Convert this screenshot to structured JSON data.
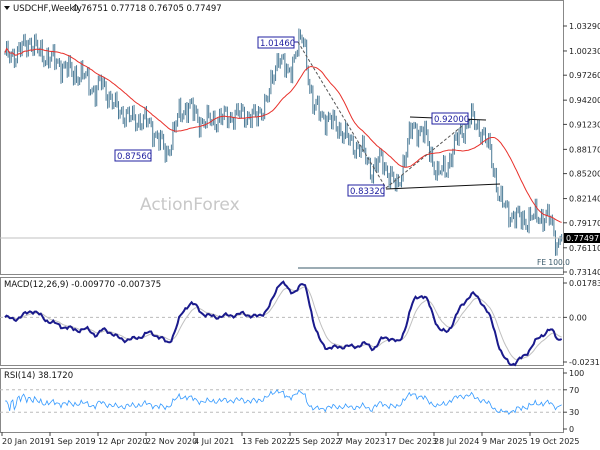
{
  "header": {
    "symbol": "USDCHF,Weekly",
    "ohlc": "0.76751 0.77718 0.76705 0.77497",
    "menu_icon": "triangle-down-icon"
  },
  "watermark": "ActionForex",
  "colors": {
    "bars": "#4a7a96",
    "ma": "#e8302a",
    "macd": "#1a1a8c",
    "signal": "#c0c0c0",
    "rsi": "#3399ff",
    "labels": "#2020a0"
  },
  "chart_data": {
    "type": "ohlc",
    "title": "USDCHF,Weekly",
    "price_axis": {
      "ticks": [
        "1.03290",
        "1.00230",
        "0.97260",
        "0.94200",
        "0.91230",
        "0.88170",
        "0.85200",
        "0.82140",
        "0.79170",
        "0.76110",
        "0.73140"
      ],
      "range": [
        0.7314,
        1.0329
      ],
      "current": "0.77497"
    },
    "x_ticks": [
      "20 Jan 2019",
      "1 Sep 2019",
      "12 Apr 2020",
      "22 Nov 2020",
      "4 Jul 2021",
      "13 Feb 2022",
      "25 Sep 2022",
      "7 May 2023",
      "17 Dec 2023",
      "28 Jul 2024",
      "9 Mar 2025",
      "19 Oct 2025"
    ],
    "price_keypoints_week_price": [
      [
        0,
        0.995
      ],
      [
        8,
        1.0
      ],
      [
        16,
        1.015
      ],
      [
        22,
        1.0
      ],
      [
        32,
        0.99
      ],
      [
        44,
        0.975
      ],
      [
        52,
        0.97
      ],
      [
        58,
        0.95
      ],
      [
        62,
        0.965
      ],
      [
        70,
        0.935
      ],
      [
        80,
        0.92
      ],
      [
        92,
        0.915
      ],
      [
        100,
        0.89
      ],
      [
        104,
        0.8756
      ],
      [
        112,
        0.925
      ],
      [
        118,
        0.935
      ],
      [
        126,
        0.915
      ],
      [
        140,
        0.92
      ],
      [
        152,
        0.925
      ],
      [
        162,
        0.92
      ],
      [
        170,
        0.95
      ],
      [
        176,
        1.0
      ],
      [
        182,
        0.97
      ],
      [
        188,
        1.01
      ],
      [
        192,
        1.0146
      ],
      [
        198,
        0.935
      ],
      [
        206,
        0.92
      ],
      [
        214,
        0.91
      ],
      [
        222,
        0.89
      ],
      [
        230,
        0.88
      ],
      [
        236,
        0.855
      ],
      [
        242,
        0.87
      ],
      [
        252,
        0.8332
      ],
      [
        262,
        0.91
      ],
      [
        270,
        0.9
      ],
      [
        278,
        0.85
      ],
      [
        284,
        0.86
      ],
      [
        292,
        0.9
      ],
      [
        300,
        0.92
      ],
      [
        306,
        0.905
      ],
      [
        312,
        0.88
      ],
      [
        318,
        0.82
      ],
      [
        326,
        0.8
      ],
      [
        334,
        0.795
      ],
      [
        342,
        0.8
      ],
      [
        350,
        0.798
      ],
      [
        355,
        0.765
      ],
      [
        358,
        0.775
      ]
    ],
    "moving_average": {
      "period": 30
    },
    "annotations": [
      {
        "text": "1.01460",
        "price": 1.0146
      },
      {
        "text": "0.87560",
        "price": 0.8756
      },
      {
        "text": "0.83320",
        "price": 0.8332
      },
      {
        "text": "0.92000",
        "price": 0.92
      },
      {
        "text": "FE 100.0",
        "price": 0.7365
      }
    ],
    "macd": {
      "label": "MACD(12,26,9) -0.009770 -0.007375",
      "ticks": [
        "0.017833",
        "0.00",
        "-0.023159"
      ],
      "range": [
        -0.023159,
        0.017833
      ]
    },
    "rsi": {
      "label": "RSI(14) 38.1720",
      "ticks": [
        "100",
        "70",
        "30",
        "0"
      ],
      "range": [
        0,
        100
      ],
      "levels": [
        70,
        30
      ]
    }
  }
}
